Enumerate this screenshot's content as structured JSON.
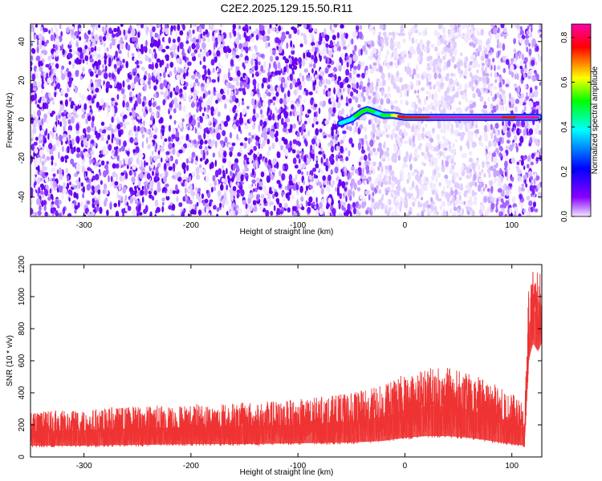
{
  "title": "C2E2.2025.129.15.50.R11",
  "chart_data": [
    {
      "type": "heatmap",
      "xlabel": "Height of straight line (km)",
      "ylabel": "Frequency (Hz)",
      "xlim": [
        -350,
        128
      ],
      "ylim": [
        -50,
        49
      ],
      "xticks": [
        "-300",
        "-200",
        "-100",
        "0",
        "100"
      ],
      "xtick_values": [
        -300,
        -200,
        -100,
        0,
        100
      ],
      "yticks": [
        "-40",
        "-20",
        "0",
        "20",
        "40"
      ],
      "ytick_values": [
        -40,
        -20,
        0,
        20,
        40
      ],
      "colorbar": {
        "label": "Normalized spectral amplitude",
        "range": [
          0,
          0.86
        ],
        "ticks": [
          "0.0",
          "0.2",
          "0.4",
          "0.6",
          "0.8"
        ],
        "tick_values": [
          0,
          0.2,
          0.4,
          0.6,
          0.8
        ],
        "colors": [
          "#f0e6ff",
          "#8800ff",
          "#0000ff",
          "#00ffff",
          "#00ff00",
          "#ffff00",
          "#ff0000",
          "#ff00aa"
        ]
      },
      "signal_track": [
        {
          "x": -60,
          "y": -2,
          "amp": 0.25
        },
        {
          "x": -55,
          "y": -1,
          "amp": 0.3
        },
        {
          "x": -50,
          "y": 0,
          "amp": 0.35
        },
        {
          "x": -45,
          "y": 2,
          "amp": 0.4
        },
        {
          "x": -40,
          "y": 4,
          "amp": 0.45
        },
        {
          "x": -35,
          "y": 5,
          "amp": 0.4
        },
        {
          "x": -30,
          "y": 4,
          "amp": 0.45
        },
        {
          "x": -25,
          "y": 3,
          "amp": 0.35
        },
        {
          "x": -20,
          "y": 2,
          "amp": 0.4
        },
        {
          "x": -10,
          "y": 2,
          "amp": 0.55
        },
        {
          "x": 0,
          "y": 1,
          "amp": 0.7
        },
        {
          "x": 20,
          "y": 1,
          "amp": 0.75
        },
        {
          "x": 40,
          "y": 1,
          "amp": 0.8
        },
        {
          "x": 60,
          "y": 1,
          "amp": 0.78
        },
        {
          "x": 80,
          "y": 1,
          "amp": 0.8
        },
        {
          "x": 100,
          "y": 1,
          "amp": 0.72
        },
        {
          "x": 115,
          "y": 1,
          "amp": 0.82
        },
        {
          "x": 125,
          "y": 1,
          "amp": 0.85
        }
      ]
    },
    {
      "type": "line",
      "xlabel": "Height of straight line (km)",
      "ylabel": "SNR (10 * v/v)",
      "xlim": [
        -350,
        128
      ],
      "ylim": [
        0,
        1200
      ],
      "xticks": [
        "-300",
        "-200",
        "-100",
        "0",
        "100"
      ],
      "xtick_values": [
        -300,
        -200,
        -100,
        0,
        100
      ],
      "yticks": [
        "0",
        "200",
        "400",
        "600",
        "800",
        "1000",
        "1200"
      ],
      "ytick_values": [
        0,
        200,
        400,
        600,
        800,
        1000,
        1200
      ],
      "color": "#ee3333",
      "x": [
        -350,
        -300,
        -250,
        -200,
        -150,
        -100,
        -50,
        -20,
        0,
        20,
        40,
        60,
        80,
        100,
        112,
        116,
        120,
        124,
        128
      ],
      "y_low": [
        60,
        60,
        65,
        70,
        70,
        75,
        80,
        90,
        110,
        120,
        120,
        110,
        90,
        70,
        60,
        600,
        700,
        650,
        700
      ],
      "y_high": [
        280,
        300,
        320,
        330,
        340,
        360,
        400,
        450,
        520,
        560,
        560,
        520,
        470,
        400,
        320,
        1100,
        1200,
        1150,
        1150
      ]
    }
  ]
}
